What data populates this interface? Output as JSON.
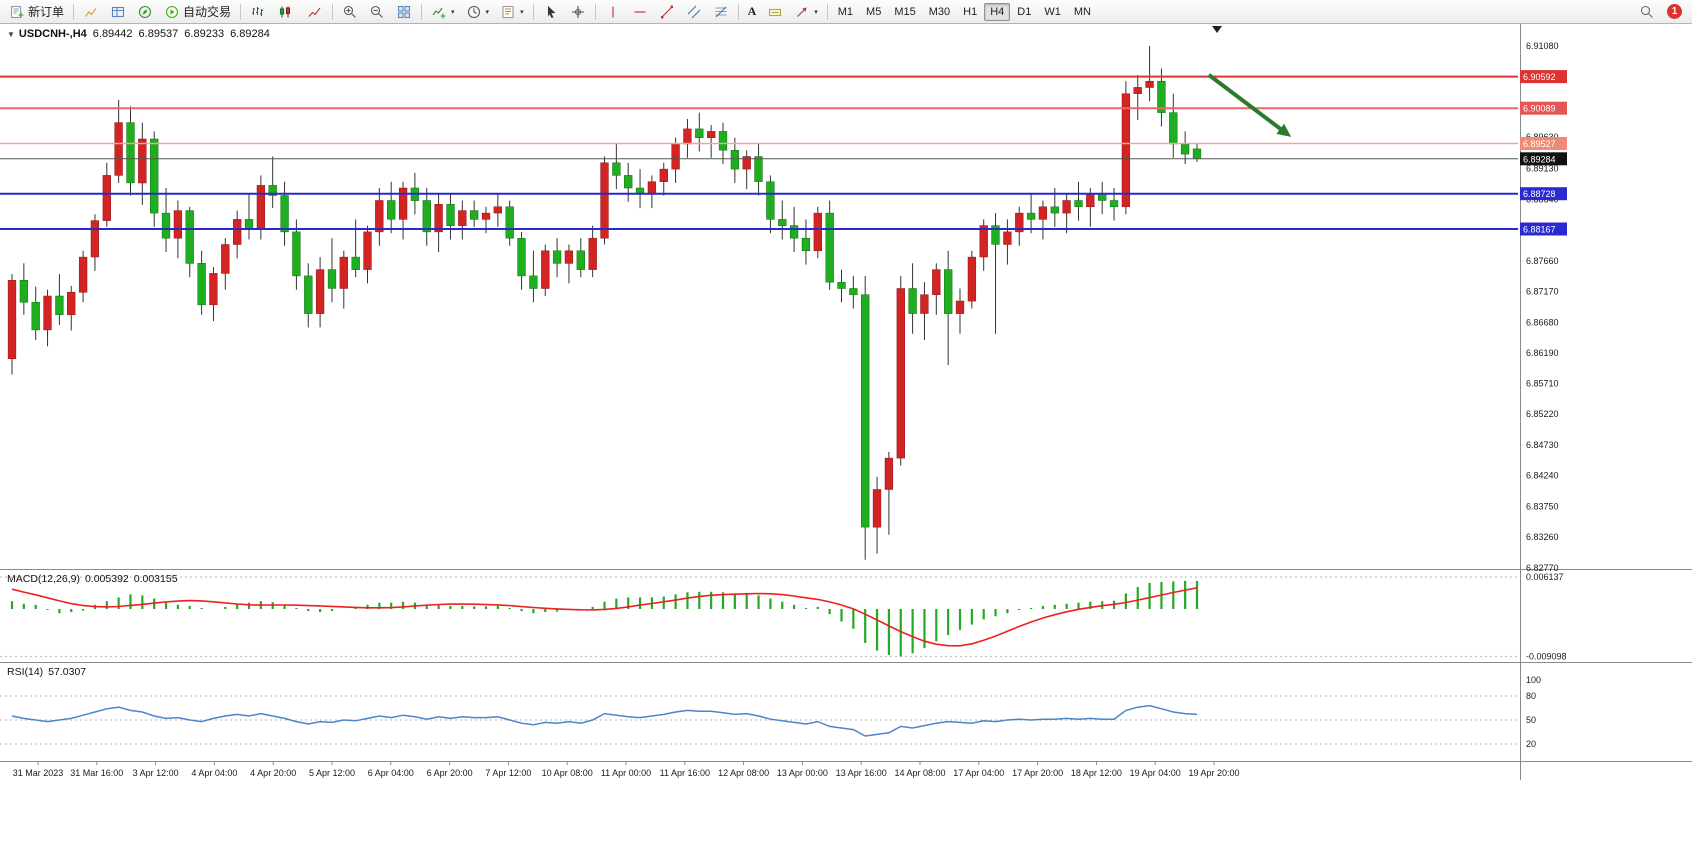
{
  "toolbar": {
    "new_order_label": "新订单",
    "autotrade_label": "自动交易",
    "text_tool_label": "A",
    "timeframes": [
      "M1",
      "M5",
      "M15",
      "M30",
      "H1",
      "H4",
      "D1",
      "W1",
      "MN"
    ],
    "active_timeframe": "H4",
    "notification_count": "1"
  },
  "chart": {
    "symbol": "USDCNH-,H4",
    "open": "6.89442",
    "high": "6.89537",
    "low": "6.89233",
    "close": "6.89284"
  },
  "macd_label": {
    "name": "MACD(12,26,9)",
    "main": "0.005392",
    "signal": "0.003155"
  },
  "rsi_label": {
    "name": "RSI(14)",
    "value": "57.0307"
  },
  "chart_data": {
    "type": "candlestick",
    "symbol": "USDCNH",
    "timeframe": "H4",
    "bull_color": "#d32424",
    "bear_color": "#1fae1f",
    "wick_color": "#333333",
    "price_axis": {
      "max": 6.9143,
      "min": 6.8277,
      "ticks": [
        6.9108,
        6.8963,
        6.8913,
        6.8864,
        6.8766,
        6.8717,
        6.8668,
        6.8619,
        6.8571,
        6.8522,
        6.8473,
        6.8424,
        6.8375,
        6.8326,
        6.8277
      ]
    },
    "hlines": [
      {
        "name": "resistance-line-1",
        "price": 6.90592,
        "color": "#dd3333",
        "width": 2,
        "badge_bg": "#dd3333"
      },
      {
        "name": "resistance-line-2",
        "price": 6.90089,
        "color": "#ee6666",
        "width": 2,
        "badge_bg": "#e55555"
      },
      {
        "name": "ask-price-line",
        "price": 6.89527,
        "color": "#f4a394",
        "width": 1.5,
        "badge_bg": "#ef8a74"
      },
      {
        "name": "bid-price-line",
        "price": 6.89284,
        "color": "#555555",
        "width": 1,
        "badge_bg": "#111111"
      },
      {
        "name": "support-line-1",
        "price": 6.88728,
        "color": "#2929cc",
        "width": 2,
        "badge_bg": "#2a2ad0"
      },
      {
        "name": "support-line-2",
        "price": 6.88167,
        "color": "#2929cc",
        "width": 2,
        "badge_bg": "#2a2ad0"
      }
    ],
    "candles": [
      [
        6.861,
        6.8745,
        6.8585,
        6.8735
      ],
      [
        6.8735,
        6.8762,
        6.868,
        6.87
      ],
      [
        6.87,
        6.8725,
        6.864,
        6.8656
      ],
      [
        6.8656,
        6.872,
        6.863,
        6.871
      ],
      [
        6.871,
        6.8745,
        6.8664,
        6.868
      ],
      [
        6.868,
        6.8726,
        6.8655,
        6.8716
      ],
      [
        6.8716,
        6.8782,
        6.87,
        6.8772
      ],
      [
        6.8772,
        6.884,
        6.875,
        6.883
      ],
      [
        6.883,
        6.8922,
        6.882,
        6.8902
      ],
      [
        6.8902,
        6.9022,
        6.889,
        6.8986
      ],
      [
        6.8986,
        6.9012,
        6.887,
        6.889
      ],
      [
        6.889,
        6.8986,
        6.8855,
        6.896
      ],
      [
        6.896,
        6.8972,
        6.882,
        6.8842
      ],
      [
        6.8842,
        6.8882,
        6.878,
        6.8802
      ],
      [
        6.8802,
        6.8862,
        6.877,
        6.8846
      ],
      [
        6.8846,
        6.8852,
        6.874,
        6.8762
      ],
      [
        6.8762,
        6.8782,
        6.868,
        6.8696
      ],
      [
        6.8696,
        6.8756,
        6.867,
        6.8746
      ],
      [
        6.8746,
        6.8802,
        6.872,
        6.8792
      ],
      [
        6.8792,
        6.8846,
        6.877,
        6.8832
      ],
      [
        6.8832,
        6.8872,
        6.88,
        6.8816
      ],
      [
        6.8816,
        6.8902,
        6.88,
        6.8886
      ],
      [
        6.8886,
        6.8932,
        6.885,
        6.887
      ],
      [
        6.887,
        6.8892,
        6.879,
        6.8812
      ],
      [
        6.8812,
        6.8832,
        6.872,
        6.8742
      ],
      [
        6.8742,
        6.8762,
        6.866,
        6.8682
      ],
      [
        6.8682,
        6.8772,
        6.866,
        6.8752
      ],
      [
        6.8752,
        6.8802,
        6.87,
        6.8722
      ],
      [
        6.8722,
        6.8782,
        6.869,
        6.8772
      ],
      [
        6.8772,
        6.8832,
        6.874,
        6.8752
      ],
      [
        6.8752,
        6.8822,
        6.873,
        6.8812
      ],
      [
        6.8812,
        6.8882,
        6.879,
        6.8862
      ],
      [
        6.8862,
        6.8892,
        6.881,
        6.8832
      ],
      [
        6.8832,
        6.8892,
        6.88,
        6.8882
      ],
      [
        6.8882,
        6.8906,
        6.884,
        6.8862
      ],
      [
        6.8862,
        6.8882,
        6.879,
        6.8812
      ],
      [
        6.8812,
        6.8872,
        6.878,
        6.8856
      ],
      [
        6.8856,
        6.8872,
        6.88,
        6.8822
      ],
      [
        6.8822,
        6.8862,
        6.88,
        6.8846
      ],
      [
        6.8846,
        6.8862,
        6.882,
        6.8832
      ],
      [
        6.8832,
        6.8852,
        6.881,
        6.8842
      ],
      [
        6.8842,
        6.8872,
        6.882,
        6.8852
      ],
      [
        6.8852,
        6.8862,
        6.879,
        6.8802
      ],
      [
        6.8802,
        6.8812,
        6.872,
        6.8742
      ],
      [
        6.8742,
        6.8782,
        6.87,
        6.8722
      ],
      [
        6.8722,
        6.8792,
        6.871,
        6.8782
      ],
      [
        6.8782,
        6.8802,
        6.874,
        6.8762
      ],
      [
        6.8762,
        6.8792,
        6.873,
        6.8782
      ],
      [
        6.8782,
        6.8802,
        6.874,
        6.8752
      ],
      [
        6.8752,
        6.8822,
        6.874,
        6.8802
      ],
      [
        6.8802,
        6.8932,
        6.8792,
        6.8922
      ],
      [
        6.8922,
        6.8952,
        6.888,
        6.8902
      ],
      [
        6.8902,
        6.8922,
        6.886,
        6.8882
      ],
      [
        6.8882,
        6.8912,
        6.885,
        6.8872
      ],
      [
        6.8872,
        6.8902,
        6.885,
        6.8892
      ],
      [
        6.8892,
        6.8922,
        6.887,
        6.8912
      ],
      [
        6.8912,
        6.8962,
        6.889,
        6.8952
      ],
      [
        6.8952,
        6.8992,
        6.893,
        6.8976
      ],
      [
        6.8976,
        6.9002,
        6.894,
        6.8962
      ],
      [
        6.8962,
        6.8982,
        6.893,
        6.8972
      ],
      [
        6.8972,
        6.8986,
        6.892,
        6.8942
      ],
      [
        6.8942,
        6.8962,
        6.889,
        6.8912
      ],
      [
        6.8912,
        6.8942,
        6.888,
        6.8932
      ],
      [
        6.8932,
        6.8952,
        6.887,
        6.8892
      ],
      [
        6.8892,
        6.8902,
        6.881,
        6.8832
      ],
      [
        6.8832,
        6.8862,
        6.88,
        6.8822
      ],
      [
        6.8822,
        6.8852,
        6.878,
        6.8802
      ],
      [
        6.8802,
        6.8832,
        6.876,
        6.8782
      ],
      [
        6.8782,
        6.8852,
        6.877,
        6.8842
      ],
      [
        6.8842,
        6.8862,
        6.872,
        6.8732
      ],
      [
        6.8732,
        6.8752,
        6.87,
        6.8722
      ],
      [
        6.8722,
        6.8742,
        6.869,
        6.8712
      ],
      [
        6.8712,
        6.8742,
        6.829,
        6.8342
      ],
      [
        6.8342,
        6.8422,
        6.83,
        6.8402
      ],
      [
        6.8402,
        6.8462,
        6.833,
        6.8452
      ],
      [
        6.8452,
        6.8742,
        6.844,
        6.8722
      ],
      [
        6.8722,
        6.8762,
        6.865,
        6.8682
      ],
      [
        6.8682,
        6.8732,
        6.864,
        6.8712
      ],
      [
        6.8712,
        6.8762,
        6.868,
        6.8752
      ],
      [
        6.8752,
        6.8782,
        6.86,
        6.8682
      ],
      [
        6.8682,
        6.8722,
        6.865,
        6.8702
      ],
      [
        6.8702,
        6.8782,
        6.869,
        6.8772
      ],
      [
        6.8772,
        6.8832,
        6.875,
        6.8822
      ],
      [
        6.8822,
        6.8842,
        6.865,
        6.8792
      ],
      [
        6.8792,
        6.8832,
        6.876,
        6.8812
      ],
      [
        6.8812,
        6.8852,
        6.879,
        6.8842
      ],
      [
        6.8842,
        6.8872,
        6.881,
        6.8832
      ],
      [
        6.8832,
        6.8862,
        6.88,
        6.8852
      ],
      [
        6.8852,
        6.8882,
        6.882,
        6.8842
      ],
      [
        6.8842,
        6.8872,
        6.881,
        6.8862
      ],
      [
        6.8862,
        6.8892,
        6.883,
        6.8852
      ],
      [
        6.8852,
        6.8882,
        6.882,
        6.8872
      ],
      [
        6.8872,
        6.8892,
        6.884,
        6.8862
      ],
      [
        6.8862,
        6.8882,
        6.883,
        6.8852
      ],
      [
        6.8852,
        6.9052,
        6.884,
        6.9032
      ],
      [
        6.9032,
        6.9062,
        6.899,
        6.9042
      ],
      [
        6.9042,
        6.9108,
        6.902,
        6.9052
      ],
      [
        6.9052,
        6.9072,
        6.898,
        6.9002
      ],
      [
        6.9002,
        6.9032,
        6.893,
        6.8952
      ],
      [
        6.8952,
        6.8972,
        6.892,
        6.8936
      ],
      [
        6.89442,
        6.89537,
        6.89233,
        6.89284
      ]
    ],
    "time_labels": [
      "31 Mar 2023",
      "31 Mar 16:00",
      "3 Apr 12:00",
      "4 Apr 04:00",
      "4 Apr 20:00",
      "5 Apr 12:00",
      "6 Apr 04:00",
      "6 Apr 20:00",
      "7 Apr 12:00",
      "10 Apr 08:00",
      "11 Apr 00:00",
      "11 Apr 16:00",
      "12 Apr 08:00",
      "13 Apr 00:00",
      "13 Apr 16:00",
      "14 Apr 08:00",
      "17 Apr 04:00",
      "17 Apr 20:00",
      "18 Apr 12:00",
      "19 Apr 04:00",
      "19 Apr 20:00"
    ],
    "annotation_arrow": {
      "from_bar": 101,
      "from_price": 6.9062,
      "to_bar": 107.6,
      "to_price": 6.8968,
      "color": "#2c7a2c"
    },
    "indicators": {
      "macd": {
        "label": "MACD(12,26,9)",
        "main_value": 0.005392,
        "signal_value": 0.003155,
        "axis_max": 0.006137,
        "axis_min": -0.009098,
        "hist_color": "#22aa22",
        "signal_color": "#ee2020",
        "hist_pre": [
          0.006,
          0.0055,
          0.005,
          0.0045,
          0.004,
          0.0032,
          0.0025,
          0.002
        ],
        "histogram": [
          0.0015,
          0.001,
          0.0008,
          -0.0002,
          -0.0008,
          -0.0006,
          -0.0003,
          0.0008,
          0.0015,
          0.0022,
          0.0028,
          0.0026,
          0.002,
          0.0012,
          0.0008,
          0.0006,
          0.0002,
          0.0,
          0.0004,
          0.0009,
          0.0012,
          0.0015,
          0.0013,
          0.0008,
          0.0002,
          -0.0004,
          -0.0006,
          -0.0004,
          0.0,
          0.0004,
          0.0008,
          0.0012,
          0.0012,
          0.0014,
          0.0012,
          0.0008,
          0.0008,
          0.0006,
          0.0006,
          0.0005,
          0.0005,
          0.0006,
          0.0002,
          -0.0004,
          -0.0008,
          -0.0006,
          -0.0005,
          -0.0002,
          -0.0002,
          0.0004,
          0.0014,
          0.002,
          0.0022,
          0.0022,
          0.0022,
          0.0024,
          0.0028,
          0.0032,
          0.0033,
          0.0033,
          0.0032,
          0.003,
          0.0029,
          0.0026,
          0.002,
          0.0014,
          0.0008,
          0.0002,
          0.0004,
          -0.001,
          -0.0024,
          -0.0038,
          -0.0065,
          -0.008,
          -0.0088,
          -0.0091,
          -0.0085,
          -0.0075,
          -0.0062,
          -0.005,
          -0.004,
          -0.003,
          -0.002,
          -0.0014,
          -0.0008,
          -0.0002,
          0.0002,
          0.0006,
          0.0008,
          0.001,
          0.0012,
          0.0014,
          0.0015,
          0.0016,
          0.003,
          0.0042,
          0.005,
          0.0052,
          0.0053,
          0.0054,
          0.005392
        ]
      },
      "rsi": {
        "label": "RSI(14)",
        "value": 57.0307,
        "color": "#4a86c8",
        "levels": [
          80,
          50,
          20
        ],
        "axis_labels": [
          100,
          80,
          50,
          20
        ],
        "series": [
          55,
          52,
          50,
          48,
          50,
          52,
          56,
          60,
          64,
          66,
          62,
          60,
          55,
          52,
          53,
          50,
          48,
          52,
          55,
          57,
          55,
          58,
          55,
          52,
          48,
          45,
          48,
          47,
          50,
          49,
          52,
          55,
          53,
          56,
          54,
          51,
          54,
          52,
          54,
          53,
          53,
          54,
          50,
          46,
          44,
          47,
          46,
          48,
          46,
          50,
          58,
          56,
          54,
          53,
          55,
          57,
          60,
          62,
          61,
          61,
          59,
          57,
          58,
          55,
          51,
          49,
          47,
          45,
          48,
          42,
          40,
          38,
          30,
          32,
          34,
          42,
          40,
          43,
          46,
          48,
          47,
          46,
          49,
          48,
          50,
          51,
          50,
          51,
          51,
          52,
          51,
          52,
          51,
          51,
          62,
          66,
          68,
          64,
          60,
          58,
          57.03
        ]
      }
    }
  }
}
